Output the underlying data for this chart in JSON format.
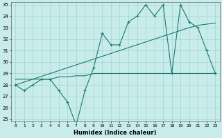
{
  "x": [
    0,
    1,
    2,
    3,
    4,
    5,
    6,
    7,
    8,
    9,
    10,
    11,
    12,
    13,
    14,
    15,
    16,
    17,
    18,
    19,
    20,
    21,
    22,
    23
  ],
  "y_jagged": [
    28,
    27.5,
    28,
    28.5,
    28.5,
    27.5,
    26.5,
    24.5,
    27.5,
    29.5,
    32.5,
    31.5,
    31.5,
    33.5,
    34,
    35,
    34,
    35,
    29,
    35,
    33.5,
    33,
    31,
    29
  ],
  "y_trend": [
    28,
    28.25,
    28.5,
    28.75,
    29.0,
    29.25,
    29.5,
    29.75,
    30.0,
    30.25,
    30.5,
    30.75,
    31.0,
    31.25,
    31.5,
    31.75,
    32.0,
    32.25,
    32.5,
    32.75,
    33.0,
    33.2,
    33.3,
    33.4
  ],
  "y_flat": [
    28.5,
    28.5,
    28.5,
    28.5,
    28.5,
    28.7,
    28.7,
    28.8,
    28.8,
    29.0,
    29.0,
    29.0,
    29.0,
    29.0,
    29.0,
    29.0,
    29.0,
    29.0,
    29.0,
    29.0,
    29.0,
    29.0,
    29.0,
    29.0
  ],
  "line_color": "#1a7a6e",
  "bg_color": "#c8ecea",
  "grid_color": "#a0d4d0",
  "xlabel": "Humidex (Indice chaleur)",
  "ylim": [
    24.8,
    35.2
  ],
  "yticks": [
    25,
    26,
    27,
    28,
    29,
    30,
    31,
    32,
    33,
    34,
    35
  ],
  "xticks": [
    0,
    1,
    2,
    3,
    4,
    5,
    6,
    7,
    8,
    9,
    10,
    11,
    12,
    13,
    14,
    15,
    16,
    17,
    18,
    19,
    20,
    21,
    22,
    23
  ],
  "xlim": [
    -0.5,
    23.5
  ]
}
